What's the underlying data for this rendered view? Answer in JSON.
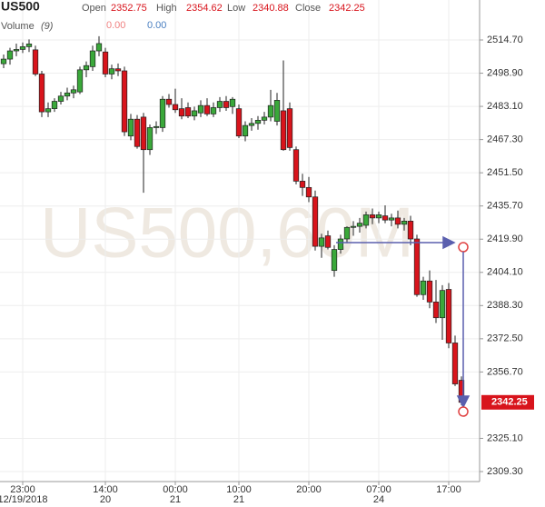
{
  "chart_data": {
    "type": "candlestick",
    "title": "US500",
    "watermark": "US500,60M",
    "ohlc_labels": {
      "open": "Open",
      "high": "High",
      "low": "Low",
      "close": "Close"
    },
    "volume": {
      "label": "Volume",
      "period": "(9)",
      "values": [
        "0.00",
        "0.00"
      ],
      "colors": [
        "#f08080",
        "#4a7fc1"
      ]
    },
    "categories": [
      null,
      null,
      null,
      "23:00",
      null,
      null,
      null,
      null,
      null,
      null,
      null,
      null,
      null,
      null,
      null,
      null,
      "14:00",
      null,
      null,
      null,
      null,
      null,
      null,
      null,
      null,
      null,
      null,
      "00:00",
      null,
      null,
      null,
      null,
      null,
      null,
      null,
      null,
      null,
      "10:00",
      null,
      null,
      null,
      null,
      null,
      null,
      null,
      null,
      null,
      null,
      "20:00",
      null,
      null,
      null,
      null,
      null,
      null,
      null,
      null,
      null,
      null,
      "07:00",
      null,
      null,
      null,
      null,
      null,
      null,
      null,
      null,
      null,
      null,
      "17:00",
      null,
      null
    ],
    "date_labels": [
      null,
      null,
      null,
      "12/19/2018",
      null,
      null,
      null,
      null,
      null,
      null,
      null,
      null,
      null,
      null,
      null,
      null,
      "20",
      null,
      null,
      null,
      null,
      null,
      null,
      null,
      null,
      null,
      null,
      "21",
      null,
      null,
      null,
      null,
      null,
      null,
      null,
      null,
      null,
      "21",
      null,
      null,
      null,
      null,
      null,
      null,
      null,
      null,
      null,
      null,
      null,
      null,
      null,
      null,
      null,
      null,
      null,
      null,
      null,
      null,
      null,
      "24",
      null,
      null,
      null,
      null,
      null,
      null,
      null,
      null,
      null,
      null,
      null,
      null,
      null
    ],
    "open": [
      2503.4,
      2505.6,
      2509.5,
      2510.2,
      2511.5,
      2510.0,
      2498.5,
      2480.5,
      2482.0,
      2485.5,
      2488.0,
      2489.5,
      2490.0,
      2500.5,
      2502.0,
      2509.5,
      2509.0,
      2498.5,
      2501.0,
      2500.0,
      2469.0,
      2477.0,
      2478.0,
      2462.5,
      2473.0,
      2473.0,
      2486.5,
      2484.0,
      2482.0,
      2482.5,
      2478.5,
      2480.0,
      2483.5,
      2479.5,
      2482.5,
      2485.5,
      2483.0,
      2482.0,
      2469.0,
      2474.0,
      2475.0,
      2476.5,
      2478.0,
      2476.0,
      2481.0,
      2482.0,
      2462.5,
      2447.5,
      2444.5,
      2440.0,
      2416.5,
      2421.5,
      2405.0,
      2415.0,
      2420.0,
      2425.5,
      2426.0,
      2426.5,
      2431.5,
      2430.0,
      2431.0,
      2429.0,
      2430.0,
      2427.0,
      2428.5,
      2420.0,
      2393.5,
      2400.0,
      2390.0,
      2382.5,
      2396.0,
      2370.5,
      2352.75
    ],
    "high": [
      2507.8,
      2511.0,
      2513.0,
      2513.5,
      2515.0,
      2512.0,
      2500.0,
      2485.0,
      2487.0,
      2490.0,
      2492.0,
      2493.0,
      2502.0,
      2504.5,
      2512.0,
      2516.5,
      2511.0,
      2503.0,
      2503.5,
      2502.0,
      2479.5,
      2479.0,
      2480.0,
      2474.5,
      2476.0,
      2488.0,
      2489.0,
      2491.5,
      2487.0,
      2485.0,
      2483.0,
      2486.0,
      2487.0,
      2485.0,
      2487.5,
      2488.0,
      2487.5,
      2484.0,
      2476.0,
      2477.5,
      2478.5,
      2480.5,
      2491.0,
      2489.5,
      2505.0,
      2485.0,
      2464.0,
      2451.0,
      2449.5,
      2443.0,
      2422.5,
      2424.0,
      2417.0,
      2422.0,
      2426.0,
      2428.5,
      2430.0,
      2433.0,
      2434.5,
      2433.0,
      2436.0,
      2432.0,
      2433.5,
      2430.0,
      2431.0,
      2422.0,
      2402.0,
      2405.0,
      2400.5,
      2398.0,
      2399.0,
      2374.0,
      2354.62
    ],
    "low": [
      2501.3,
      2503.0,
      2507.0,
      2508.5,
      2509.0,
      2497.5,
      2478.0,
      2478.0,
      2480.5,
      2484.0,
      2486.0,
      2487.0,
      2489.0,
      2497.0,
      2500.0,
      2507.0,
      2497.0,
      2496.0,
      2497.5,
      2469.0,
      2467.0,
      2463.0,
      2442.0,
      2460.0,
      2470.0,
      2471.0,
      2482.5,
      2480.0,
      2477.0,
      2477.5,
      2476.5,
      2478.0,
      2478.5,
      2478.0,
      2480.5,
      2481.0,
      2479.5,
      2468.0,
      2466.5,
      2471.5,
      2472.0,
      2474.5,
      2476.0,
      2474.0,
      2462.0,
      2462.0,
      2446.0,
      2440.5,
      2437.5,
      2414.5,
      2411.0,
      2415.0,
      2402.0,
      2413.0,
      2418.0,
      2421.5,
      2423.0,
      2425.0,
      2427.0,
      2427.5,
      2427.5,
      2426.0,
      2425.0,
      2424.0,
      2417.0,
      2392.5,
      2391.0,
      2387.0,
      2380.0,
      2372.0,
      2368.0,
      2350.0,
      2340.88
    ],
    "close": [
      2505.6,
      2509.5,
      2510.2,
      2511.5,
      2512.8,
      2498.5,
      2480.5,
      2482.0,
      2485.5,
      2488.0,
      2489.5,
      2491.0,
      2500.5,
      2502.5,
      2509.5,
      2513.0,
      2498.5,
      2501.0,
      2500.0,
      2471.0,
      2477.0,
      2464.0,
      2462.5,
      2473.0,
      2473.5,
      2486.5,
      2484.0,
      2481.5,
      2478.5,
      2478.5,
      2481.0,
      2483.5,
      2479.5,
      2482.5,
      2485.5,
      2482.5,
      2486.5,
      2469.0,
      2474.0,
      2475.0,
      2476.5,
      2478.0,
      2483.5,
      2486.0,
      2462.5,
      2463.5,
      2447.5,
      2444.5,
      2440.0,
      2416.5,
      2420.5,
      2416.0,
      2415.0,
      2420.0,
      2425.5,
      2426.0,
      2427.5,
      2431.5,
      2430.0,
      2431.5,
      2429.0,
      2430.0,
      2427.0,
      2428.5,
      2420.0,
      2393.5,
      2400.0,
      2390.0,
      2382.5,
      2395.5,
      2370.5,
      2351.0,
      2342.25
    ],
    "up_color": "#3aa83a",
    "down_color": "#d8141c",
    "ylim": [
      2304.54,
      2533.73
    ],
    "yticks": [
      {
        "value": 2514.7,
        "label": "2514.70"
      },
      {
        "value": 2498.9,
        "label": "2498.90"
      },
      {
        "value": 2483.1,
        "label": "2483.10"
      },
      {
        "value": 2467.3,
        "label": "2467.30"
      },
      {
        "value": 2451.5,
        "label": "2451.50"
      },
      {
        "value": 2435.7,
        "label": "2435.70"
      },
      {
        "value": 2419.9,
        "label": "2419.90"
      },
      {
        "value": 2404.1,
        "label": "2404.10"
      },
      {
        "value": 2388.3,
        "label": "2388.30"
      },
      {
        "value": 2372.5,
        "label": "2372.50"
      },
      {
        "value": 2356.7,
        "label": "2356.70"
      },
      {
        "value": 2325.1,
        "label": "2325.10"
      },
      {
        "value": 2309.3,
        "label": "2309.30"
      }
    ],
    "grid": true
  }
}
